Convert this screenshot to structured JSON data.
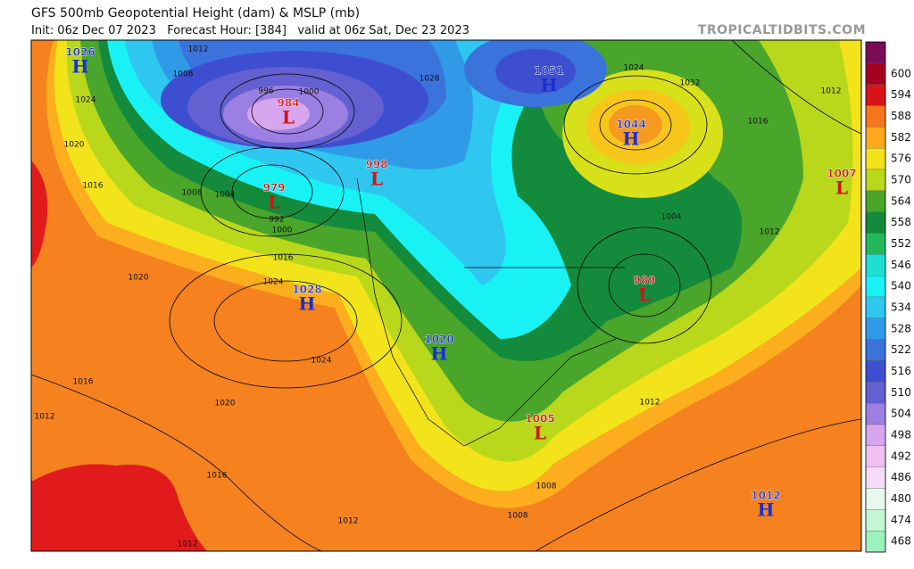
{
  "header": {
    "title": "GFS 500mb Geopotential Height (dam) & MSLP (mb)",
    "subtitle": "Init: 06z Dec 07 2023   Forecast Hour: [384]   valid at 06z Sat, Dec 23 2023",
    "source": "TROPICALTIDBITS.COM"
  },
  "colorbar": {
    "top_color": "#7a0b57",
    "levels": [
      {
        "label": "600",
        "color": "#a5001e"
      },
      {
        "label": "594",
        "color": "#d8141a"
      },
      {
        "label": "588",
        "color": "#f5761c"
      },
      {
        "label": "582",
        "color": "#fca81e"
      },
      {
        "label": "576",
        "color": "#f2e31a"
      },
      {
        "label": "570",
        "color": "#b9d81b"
      },
      {
        "label": "564",
        "color": "#4aa52b"
      },
      {
        "label": "558",
        "color": "#138a3c"
      },
      {
        "label": "552",
        "color": "#22b85a"
      },
      {
        "label": "546",
        "color": "#1de0d2"
      },
      {
        "label": "540",
        "color": "#19f2f5"
      },
      {
        "label": "534",
        "color": "#2fc6f0"
      },
      {
        "label": "528",
        "color": "#2f9be8"
      },
      {
        "label": "522",
        "color": "#3a73dc"
      },
      {
        "label": "516",
        "color": "#3d4fd0"
      },
      {
        "label": "510",
        "color": "#6460d2"
      },
      {
        "label": "504",
        "color": "#9b7fe2"
      },
      {
        "label": "498",
        "color": "#d7a6ef"
      },
      {
        "label": "492",
        "color": "#f0c0f2"
      },
      {
        "label": "486",
        "color": "#f6dcf6"
      },
      {
        "label": "480",
        "color": "#e8f8ee"
      },
      {
        "label": "474",
        "color": "#c4f6d6"
      },
      {
        "label": "468",
        "color": "#9cf2bc"
      }
    ]
  },
  "pressure_centers": [
    {
      "type": "H",
      "value": "1026"
    },
    {
      "type": "L",
      "value": "984"
    },
    {
      "type": "L",
      "value": "979"
    },
    {
      "type": "L",
      "value": "998"
    },
    {
      "type": "H",
      "value": "1028"
    },
    {
      "type": "H",
      "value": "1020"
    },
    {
      "type": "H",
      "value": "1051"
    },
    {
      "type": "H",
      "value": "1044"
    },
    {
      "type": "L",
      "value": "1007"
    },
    {
      "type": "L",
      "value": "989"
    },
    {
      "type": "L",
      "value": "1005"
    },
    {
      "type": "H",
      "value": "1012"
    }
  ],
  "isobar_labels": [
    "1012",
    "1008",
    "1024",
    "1020",
    "1016",
    "1008",
    "1004",
    "992",
    "1000",
    "1016",
    "1024",
    "1020",
    "1024",
    "1016",
    "1020",
    "1012",
    "1016",
    "1012",
    "1012",
    "1008",
    "1008",
    "1012",
    "1012",
    "1016",
    "1012",
    "1032",
    "1024",
    "1004",
    "1028",
    "996",
    "1000"
  ]
}
